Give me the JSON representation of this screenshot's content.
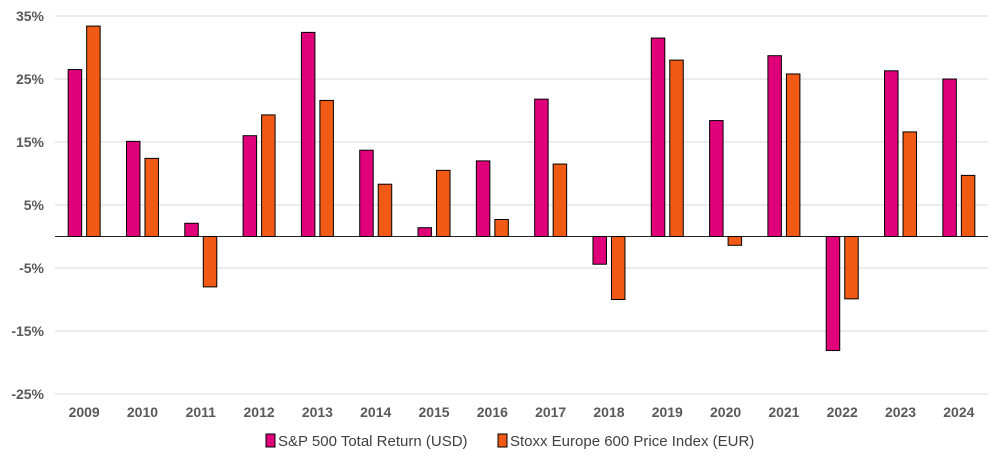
{
  "chart_data": {
    "type": "bar",
    "title": "",
    "xlabel": "",
    "ylabel": "",
    "categories": [
      "2009",
      "2010",
      "2011",
      "2012",
      "2013",
      "2014",
      "2015",
      "2016",
      "2017",
      "2018",
      "2019",
      "2020",
      "2021",
      "2022",
      "2023",
      "2024"
    ],
    "series": [
      {
        "name": "S&P 500 Total Return (USD)",
        "color": "#e0007a",
        "values": [
          26.5,
          15.1,
          2.1,
          16.0,
          32.4,
          13.7,
          1.4,
          12.0,
          21.8,
          -4.4,
          31.5,
          18.4,
          28.7,
          -18.1,
          26.3,
          25.0
        ]
      },
      {
        "name": "Stoxx Europe 600 Price Index (EUR)",
        "color": "#f05a14",
        "values": [
          33.4,
          12.4,
          -8.0,
          19.3,
          21.6,
          8.3,
          10.5,
          2.7,
          11.5,
          -10.0,
          28.0,
          -1.4,
          25.8,
          -9.9,
          16.6,
          9.7
        ]
      }
    ],
    "ylim": [
      -25,
      35
    ],
    "yticks": [
      35,
      25,
      15,
      5,
      -5,
      -15,
      -25
    ],
    "ytick_labels": [
      "35%",
      "25%",
      "15%",
      "5%",
      "-5%",
      "-15%",
      "-25%"
    ],
    "grid": true,
    "legend": "bottom-center"
  }
}
